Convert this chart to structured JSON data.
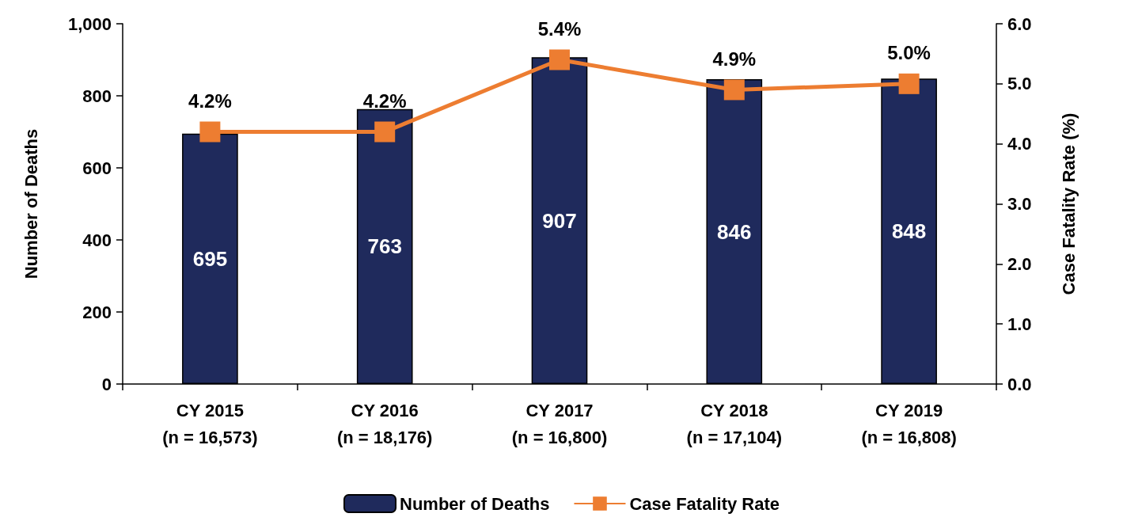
{
  "chart_data": {
    "type": "bar",
    "ylabel": "Number of Deaths",
    "y2label": "Case Fatality Rate (%)",
    "categories": [
      "CY 2015\n(n = 16,573)",
      "CY 2016\n(n = 18,176)",
      "CY 2017\n(n = 16,800)",
      "CY 2018\n(n = 17,104)",
      "CY 2019\n(n = 16,808)"
    ],
    "series": [
      {
        "name": "Number of Deaths",
        "color": "#1f2a5c",
        "values": [
          695,
          763,
          907,
          846,
          848
        ],
        "value_labels": [
          "695",
          "763",
          "907",
          "846",
          "848"
        ]
      },
      {
        "name": "Case Fatality Rate",
        "type": "line",
        "axis": "y2",
        "color": "#ed7d31",
        "marker": "square",
        "values": [
          4.2,
          4.2,
          5.4,
          4.9,
          5.0
        ],
        "value_labels": [
          "4.2%",
          "4.2%",
          "5.4%",
          "4.9%",
          "5.0%"
        ]
      }
    ],
    "ylim": [
      0,
      1000
    ],
    "yticks": [
      0,
      200,
      400,
      600,
      800,
      {
        "value": 1000,
        "label": "1,000"
      }
    ],
    "y2lim": [
      0,
      6
    ],
    "y2ticks": [
      {
        "value": 0,
        "label": "0.0"
      },
      {
        "value": 1,
        "label": "1.0"
      },
      {
        "value": 2,
        "label": "2.0"
      },
      {
        "value": 3,
        "label": "3.0"
      },
      {
        "value": 4,
        "label": "4.0"
      },
      {
        "value": 5,
        "label": "5.0"
      },
      {
        "value": 6,
        "label": "6.0"
      }
    ],
    "grid": false,
    "legend": "bottom"
  }
}
